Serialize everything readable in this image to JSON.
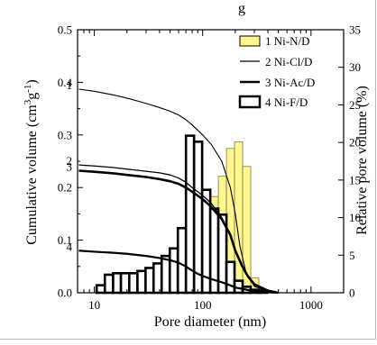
{
  "chart_data": {
    "type": "bar+line",
    "title_fragment": "g",
    "xlabel": "Pore diameter (nm)",
    "ylabel_left": "Cumulative volume (cm3g-1)",
    "ylabel_right": "Relative pore volume (%)",
    "x_scale": "log",
    "xlim": [
      7,
      2000
    ],
    "x_ticks": [
      10,
      100,
      1000
    ],
    "x_tick_labels": [
      "10",
      "100",
      "1000"
    ],
    "ylim_left": [
      0,
      0.5
    ],
    "y_ticks_left": [
      "0.0",
      "0.1",
      "0.2",
      "0.3",
      "0.4",
      "0.5"
    ],
    "ylim_right": [
      0,
      35
    ],
    "y_ticks_right": [
      "0",
      "5",
      "10",
      "15",
      "20",
      "25",
      "30",
      "35"
    ],
    "legend_position": "top-right",
    "legend": [
      {
        "label": "1 Ni-N/D",
        "kind": "bar",
        "color": "#fff68f"
      },
      {
        "label": "2 Ni-Cl/D",
        "kind": "line"
      },
      {
        "label": "3 Ni-Ac/D",
        "kind": "line"
      },
      {
        "label": "4 Ni-F/D",
        "kind": "bar",
        "color": "#ffffff"
      }
    ],
    "bars_yellow": {
      "name": "1 Ni-N/D",
      "color": "#fff68f",
      "bins": [
        [
          10.5,
          12.5,
          0.5
        ],
        [
          12.5,
          14.9,
          1.0
        ],
        [
          14.9,
          17.6,
          1.2
        ],
        [
          17.6,
          21.0,
          1.4
        ],
        [
          21.0,
          25.0,
          1.6
        ],
        [
          25.0,
          29.7,
          1.9
        ],
        [
          29.7,
          35.2,
          2.4
        ],
        [
          35.2,
          41.8,
          3.0
        ],
        [
          41.8,
          49.7,
          3.6
        ],
        [
          49.7,
          59.0,
          4.6
        ],
        [
          59.0,
          70.1,
          6.3
        ],
        [
          70.1,
          83.3,
          9.8
        ],
        [
          83.3,
          98.9,
          10.5
        ],
        [
          98.9,
          117.5,
          11.5
        ],
        [
          117.5,
          139.5,
          12.8
        ],
        [
          139.5,
          165.7,
          15.5
        ],
        [
          165.7,
          196.8,
          19.2
        ],
        [
          196.8,
          233.8,
          20.1
        ],
        [
          233.8,
          277.7,
          16.8
        ],
        [
          277.7,
          329.8,
          2.0
        ]
      ]
    },
    "bars_white": {
      "name": "4 Ni-F/D",
      "color": "#ffffff",
      "bins": [
        [
          10.5,
          12.5,
          1.0
        ],
        [
          12.5,
          14.9,
          2.4
        ],
        [
          14.9,
          17.6,
          2.6
        ],
        [
          17.6,
          21.0,
          2.6
        ],
        [
          21.0,
          25.0,
          2.6
        ],
        [
          25.0,
          29.7,
          2.9
        ],
        [
          29.7,
          35.2,
          3.3
        ],
        [
          35.2,
          41.8,
          3.9
        ],
        [
          41.8,
          49.7,
          4.9
        ],
        [
          49.7,
          59.0,
          5.9
        ],
        [
          59.0,
          70.1,
          8.6
        ],
        [
          70.1,
          83.3,
          20.9
        ],
        [
          83.3,
          98.9,
          20.1
        ],
        [
          98.9,
          117.5,
          13.7
        ],
        [
          117.5,
          139.5,
          11.2
        ],
        [
          139.5,
          165.7,
          10.4
        ],
        [
          165.7,
          196.8,
          4.1
        ],
        [
          196.8,
          233.8,
          1.6
        ],
        [
          233.8,
          277.7,
          0.8
        ],
        [
          277.7,
          329.8,
          0.4
        ],
        [
          329.8,
          391.7,
          0.3
        ]
      ]
    },
    "series": [
      {
        "name": "1",
        "x": [
          7.2,
          10,
          15,
          20,
          30,
          40,
          50,
          60,
          70,
          80,
          100,
          120,
          150,
          180,
          200,
          220,
          250,
          300,
          400,
          500
        ],
        "y": [
          0.387,
          0.383,
          0.376,
          0.37,
          0.36,
          0.352,
          0.345,
          0.338,
          0.329,
          0.319,
          0.3,
          0.282,
          0.25,
          0.2,
          0.15,
          0.09,
          0.04,
          0.012,
          0.003,
          0.0
        ]
      },
      {
        "name": "2",
        "x": [
          7.2,
          10,
          15,
          20,
          30,
          40,
          50,
          60,
          70,
          80,
          100,
          120,
          150,
          180,
          200,
          230,
          260,
          300,
          400,
          500
        ],
        "y": [
          0.243,
          0.241,
          0.238,
          0.235,
          0.231,
          0.228,
          0.224,
          0.218,
          0.21,
          0.2,
          0.185,
          0.17,
          0.143,
          0.11,
          0.08,
          0.05,
          0.03,
          0.015,
          0.004,
          0.0
        ]
      },
      {
        "name": "3",
        "x": [
          7.2,
          10,
          15,
          20,
          30,
          40,
          50,
          60,
          70,
          80,
          100,
          120,
          150,
          180,
          200,
          230,
          260,
          300,
          400,
          500
        ],
        "y": [
          0.232,
          0.23,
          0.227,
          0.224,
          0.22,
          0.216,
          0.212,
          0.207,
          0.2,
          0.192,
          0.178,
          0.163,
          0.14,
          0.11,
          0.08,
          0.052,
          0.032,
          0.016,
          0.004,
          0.0
        ]
      },
      {
        "name": "4",
        "x": [
          7.2,
          10,
          15,
          20,
          30,
          40,
          50,
          60,
          70,
          80,
          90,
          100,
          120,
          150,
          180,
          200,
          250,
          300,
          400,
          500
        ],
        "y": [
          0.08,
          0.078,
          0.076,
          0.074,
          0.07,
          0.066,
          0.062,
          0.057,
          0.05,
          0.042,
          0.036,
          0.032,
          0.026,
          0.02,
          0.014,
          0.01,
          0.006,
          0.003,
          0.001,
          0.0
        ]
      }
    ]
  }
}
